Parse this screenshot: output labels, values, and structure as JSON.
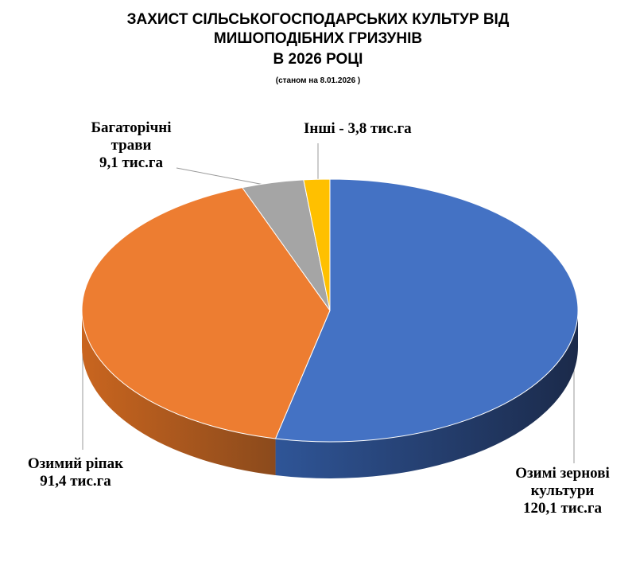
{
  "chart_data": {
    "type": "pie",
    "title": [
      "ЗАХИСТ СІЛЬСЬКОГОСПОДАРСЬКИХ КУЛЬТУР ВІД",
      "МИШОПОДІБНИХ ГРИЗУНІВ",
      "В  2026  РОЦІ"
    ],
    "subtitle": "(станом на  8.01.2026 )",
    "categories": [
      "Озимі зернові культури",
      "Озимий ріпак",
      "Багаторічні трави",
      "Інші"
    ],
    "values": [
      120.1,
      91.4,
      9.1,
      3.8
    ],
    "value_labels": [
      "120,1 тис.га",
      "91,4 тис.га",
      "9,1 тис.га",
      "3,8 тис.га"
    ],
    "label_separator": " - ",
    "colors": [
      "#4472c4",
      "#ed7d31",
      "#a5a5a5",
      "#ffc000"
    ]
  }
}
